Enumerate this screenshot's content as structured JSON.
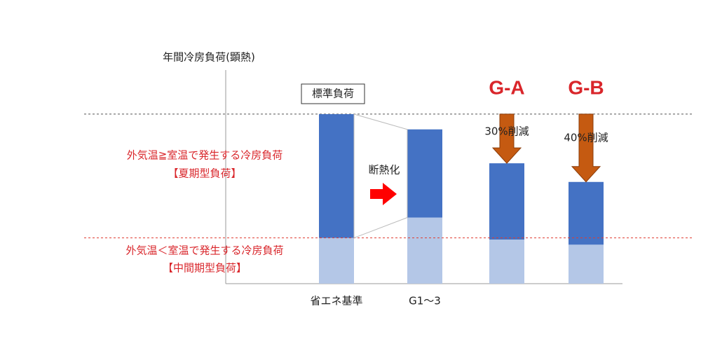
{
  "chart_data": {
    "type": "bar",
    "stacked": true,
    "ylabel": "年間冷房負荷(顕熱)",
    "ylim": [
      0,
      126
    ],
    "categories": [
      "省エネ基準",
      "G1～3",
      "G-A",
      "G-B"
    ],
    "series": [
      {
        "name": "【中間期型負荷】",
        "description": "外気温＜室温で発生する冷房負荷",
        "color": "#b4c7e7",
        "values": [
          27,
          39,
          26,
          23
        ]
      },
      {
        "name": "【夏期型負荷】",
        "description": "外気温≧室温で発生する冷房負荷",
        "color": "#4472c4",
        "values": [
          73,
          52,
          45,
          37
        ]
      }
    ],
    "annotations": {
      "standard": "標準負荷",
      "insulation": "断熱化",
      "reductions": [
        "30%削減",
        "40%削減"
      ]
    }
  }
}
